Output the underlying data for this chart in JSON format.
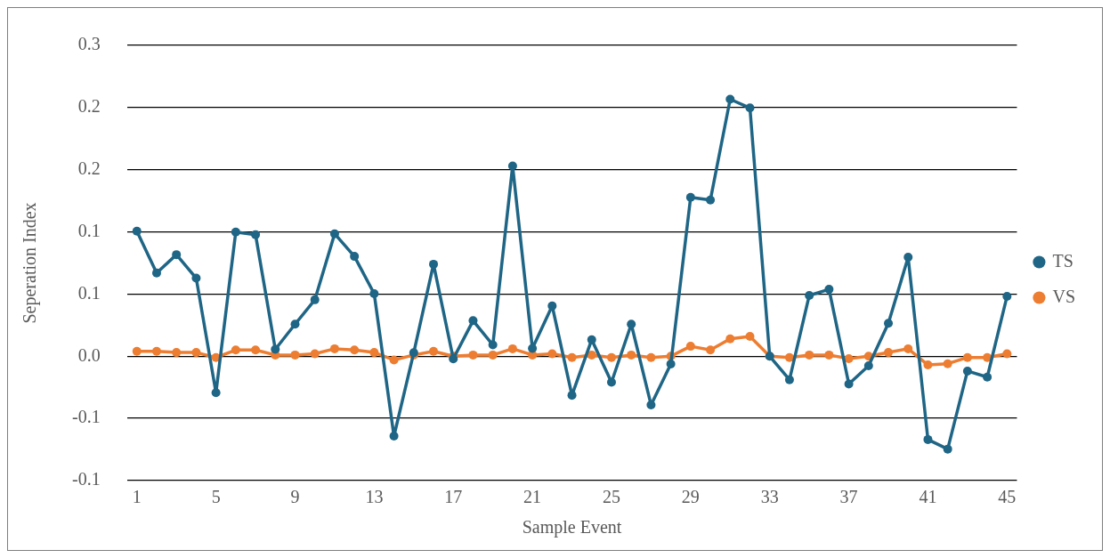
{
  "chart_data": {
    "type": "line",
    "xlabel": "Sample Event",
    "ylabel": "Seperation Index",
    "categories": [
      "1",
      null,
      null,
      null,
      "5",
      null,
      null,
      null,
      "9",
      null,
      null,
      null,
      "13",
      null,
      null,
      null,
      "17",
      null,
      null,
      null,
      "21",
      null,
      null,
      null,
      "25",
      null,
      null,
      null,
      "29",
      null,
      null,
      null,
      "33",
      null,
      null,
      null,
      "37",
      null,
      null,
      null,
      "41",
      null,
      null,
      null,
      "45"
    ],
    "series": [
      {
        "name": "TS",
        "color": "#1f6585",
        "values": [
          0.1006,
          0.067,
          0.0817,
          0.0628,
          -0.0293,
          0.0999,
          0.0978,
          0.0056,
          0.0258,
          0.0454,
          0.0985,
          0.0803,
          0.0503,
          -0.0642,
          0.0028,
          0.074,
          -0.0021,
          0.0286,
          0.0091,
          0.153,
          0.0063,
          0.0405,
          -0.0314,
          0.0133,
          -0.0209,
          0.0258,
          -0.0391,
          -0.0063,
          0.1278,
          0.1257,
          0.2067,
          0.1997,
          0.0,
          -0.0189,
          0.0489,
          0.0538,
          -0.0223,
          -0.0077,
          0.0265,
          0.0796,
          -0.067,
          -0.0747,
          -0.0119,
          -0.0168,
          0.0482
        ]
      },
      {
        "name": "VS",
        "color": "#ed7d31",
        "values": [
          0.004,
          0.004,
          0.003,
          0.003,
          -0.001,
          0.005,
          0.005,
          0.001,
          0.001,
          0.002,
          0.006,
          0.005,
          0.003,
          -0.003,
          0.001,
          0.004,
          0.0,
          0.001,
          0.001,
          0.006,
          0.001,
          0.002,
          -0.001,
          0.001,
          -0.001,
          0.001,
          -0.001,
          0.0,
          0.008,
          0.005,
          0.014,
          0.016,
          0.0,
          -0.001,
          0.001,
          0.001,
          -0.002,
          0.0,
          0.003,
          0.006,
          -0.007,
          -0.006,
          -0.001,
          -0.001,
          0.002
        ]
      }
    ],
    "ylim": [
      -0.1,
      0.25
    ],
    "yticks": [
      {
        "value": 0.25,
        "label": "0.3"
      },
      {
        "value": 0.2,
        "label": "0.2"
      },
      {
        "value": 0.15,
        "label": "0.2"
      },
      {
        "value": 0.1,
        "label": "0.1"
      },
      {
        "value": 0.05,
        "label": "0.1"
      },
      {
        "value": 0,
        "label": "0.0"
      },
      {
        "value": -0.05,
        "label": "-0.1"
      },
      {
        "value": -0.1,
        "label": "-0.1"
      }
    ],
    "grid": "y",
    "legend": "right",
    "marker": "circle",
    "line_style": "solid"
  }
}
